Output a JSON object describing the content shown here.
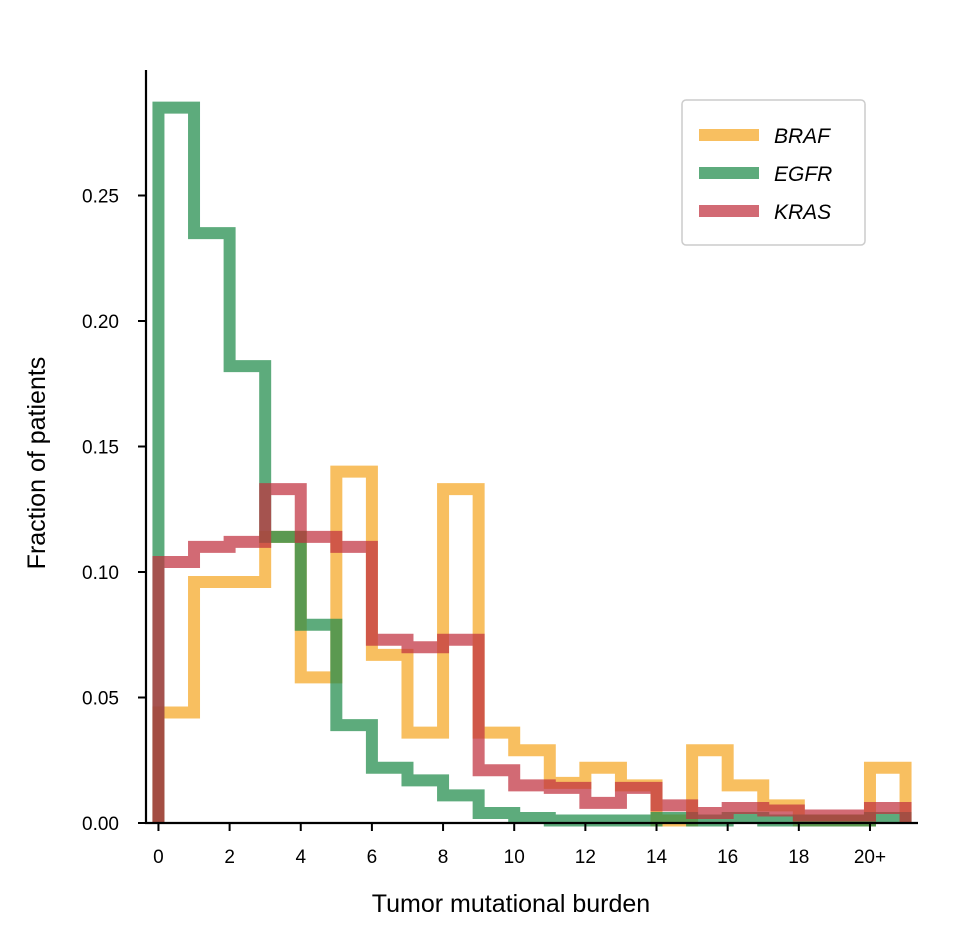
{
  "chart_data": {
    "type": "step-histogram",
    "title": "",
    "xlabel": "Tumor mutational burden",
    "ylabel": "Fraction of patients",
    "xlim": [
      -0.35,
      21.35
    ],
    "ylim": [
      0,
      0.3
    ],
    "x_ticks": [
      {
        "value": 0,
        "label": "0"
      },
      {
        "value": 2,
        "label": "2"
      },
      {
        "value": 4,
        "label": "4"
      },
      {
        "value": 6,
        "label": "6"
      },
      {
        "value": 8,
        "label": "8"
      },
      {
        "value": 10,
        "label": "10"
      },
      {
        "value": 12,
        "label": "12"
      },
      {
        "value": 14,
        "label": "14"
      },
      {
        "value": 16,
        "label": "16"
      },
      {
        "value": 18,
        "label": "18"
      },
      {
        "value": 20,
        "label": "20+"
      }
    ],
    "y_ticks": [
      {
        "value": 0,
        "label": "0.00"
      },
      {
        "value": 0.05,
        "label": "0.05"
      },
      {
        "value": 0.1,
        "label": "0.10"
      },
      {
        "value": 0.15,
        "label": "0.15"
      },
      {
        "value": 0.2,
        "label": "0.20"
      },
      {
        "value": 0.25,
        "label": "0.25"
      }
    ],
    "bin_edges": [
      0,
      1,
      2,
      3,
      4,
      5,
      6,
      7,
      8,
      9,
      10,
      11,
      12,
      13,
      14,
      15,
      16,
      17,
      18,
      19,
      20,
      21
    ],
    "series": [
      {
        "name": "BRAF",
        "color": "#f5a623",
        "opacity": 0.72,
        "values": [
          0.044,
          0.096,
          0.096,
          0.114,
          0.058,
          0.14,
          0.067,
          0.036,
          0.133,
          0.036,
          0.029,
          0.016,
          0.022,
          0.015,
          0.001,
          0.029,
          0.015,
          0.007,
          0.001,
          0.001,
          0.022
        ]
      },
      {
        "name": "EGFR",
        "color": "#1e8a4a",
        "opacity": 0.72,
        "values": [
          0.285,
          0.235,
          0.182,
          0.114,
          0.079,
          0.039,
          0.022,
          0.017,
          0.011,
          0.004,
          0.002,
          0.001,
          0.001,
          0.001,
          0.002,
          0.001,
          0.002,
          0.001,
          0.001,
          0.001,
          0.002
        ]
      },
      {
        "name": "KRAS",
        "color": "#c0303e",
        "opacity": 0.72,
        "values": [
          0.104,
          0.11,
          0.112,
          0.133,
          0.114,
          0.11,
          0.073,
          0.07,
          0.073,
          0.021,
          0.015,
          0.014,
          0.008,
          0.014,
          0.007,
          0.004,
          0.006,
          0.005,
          0.003,
          0.003,
          0.006
        ]
      }
    ],
    "legend": {
      "position": "top-right",
      "frame": true
    },
    "spines": [
      "left",
      "bottom"
    ]
  }
}
